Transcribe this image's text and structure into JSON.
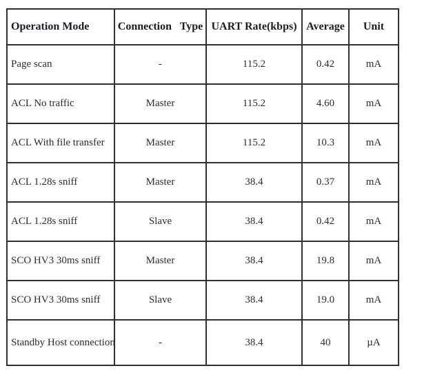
{
  "table": {
    "headers": [
      "Operation Mode",
      "Connection   Type",
      "UART Rate(kbps)",
      "Average",
      "Unit"
    ],
    "column_keys": [
      "operation-mode",
      "connection-type",
      "uart-rate",
      "average",
      "unit"
    ],
    "rows": [
      [
        "Page scan",
        "-",
        "115.2",
        "0.42",
        "mA"
      ],
      [
        "ACL No traffic",
        "Master",
        "115.2",
        "4.60",
        "mA"
      ],
      [
        "ACL With file transfer",
        "Master",
        "115.2",
        "10.3",
        "mA"
      ],
      [
        "ACL 1.28s sniff",
        "Master",
        "38.4",
        "0.37",
        "mA"
      ],
      [
        "ACL 1.28s sniff",
        "Slave",
        "38.4",
        "0.42",
        "mA"
      ],
      [
        "SCO HV3 30ms sniff",
        "Master",
        "38.4",
        "19.8",
        "mA"
      ],
      [
        "SCO HV3 30ms sniff",
        "Slave",
        "38.4",
        "19.0",
        "mA"
      ],
      [
        "Standby Host connection",
        "-",
        "38.4",
        "40",
        "µA"
      ]
    ],
    "colors": {
      "border": "#2f2f2f",
      "header_text": "#1c1c26",
      "body_text": "#2b2b33",
      "background": "#ffffff"
    }
  }
}
